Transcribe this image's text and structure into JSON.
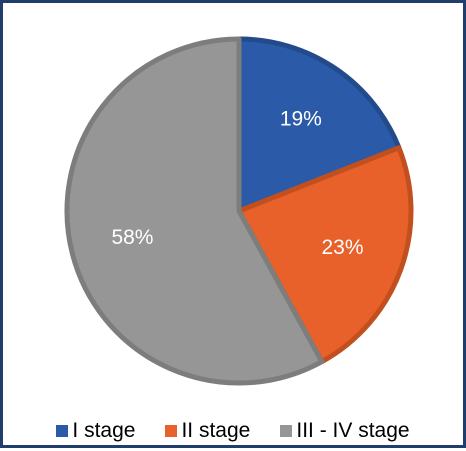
{
  "chart_data": {
    "type": "pie",
    "categories": [
      "I stage",
      "II stage",
      "III - IV stage"
    ],
    "values": [
      19,
      23,
      58
    ],
    "labels": [
      "19%",
      "23%",
      "58%"
    ],
    "colors": [
      "#2b5aa8",
      "#e8612a",
      "#969696"
    ],
    "border_colors": [
      "#234b8c",
      "#c2501f",
      "#7d7d7d"
    ],
    "start_angle_deg": 0,
    "direction": "clockwise",
    "legend": {
      "placement": "bottom",
      "entries": [
        "I stage",
        "II stage",
        "III - IV stage"
      ]
    },
    "title": ""
  },
  "frame": {
    "border_color": "#1f3e6b"
  }
}
